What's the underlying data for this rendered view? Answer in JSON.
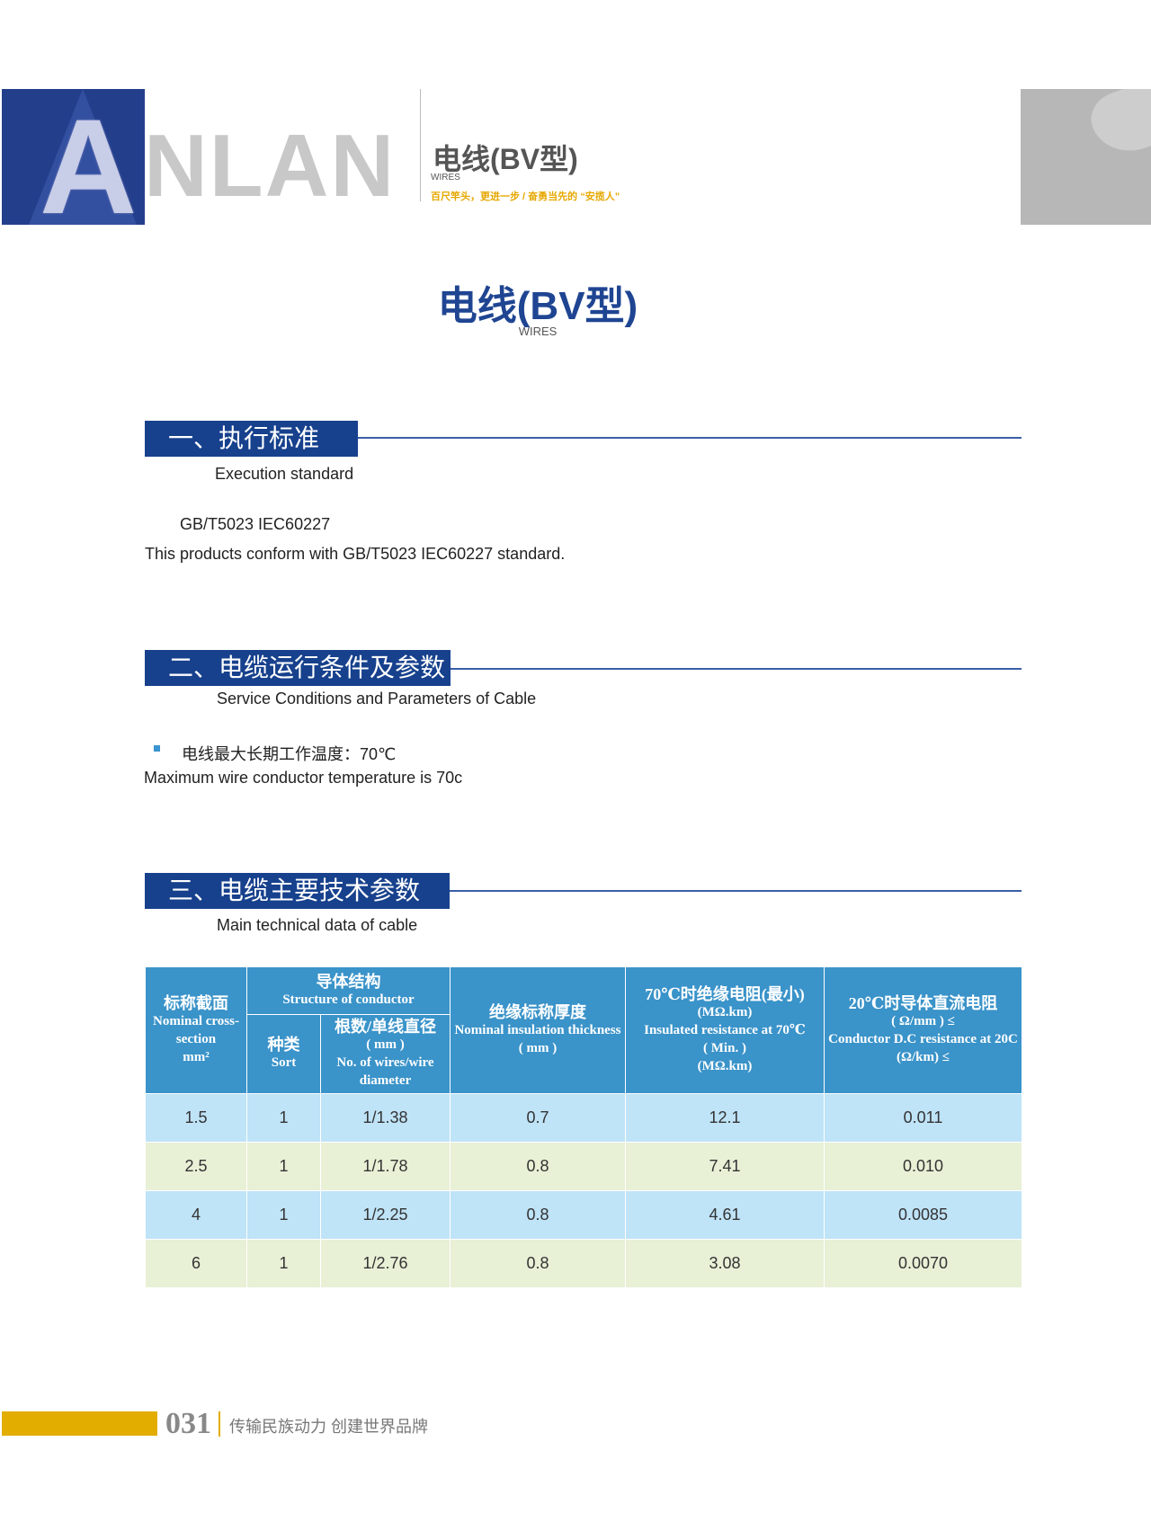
{
  "header": {
    "logo_text": "ANLAN",
    "logo_first_letter": "A",
    "logo_rest": "NLAN",
    "title": "电线(BV型)",
    "subtitle": "WIRES",
    "slogan": "百尺竿头，更进一步 / 奋勇当先的 “安揽人”",
    "colors": {
      "brand_blue": "#17418d",
      "accent_yellow": "#e3ad00",
      "table_header": "#3a93c9"
    }
  },
  "main": {
    "title": "电线(BV型)",
    "subtitle": "WIRES"
  },
  "sections": [
    {
      "title": "一、执行标准",
      "subtitle": "Execution standard",
      "lines": [
        "GB/T5023  IEC60227",
        "This products conform with GB/T5023  IEC60227 standard."
      ]
    },
    {
      "title": "二、电缆运行条件及参数",
      "subtitle": "Service Conditions and Parameters of Cable",
      "bullet": "电线最大长期工作温度：70℃",
      "lines": [
        "Maximum wire conductor temperature is 70c"
      ]
    },
    {
      "title": "三、电缆主要技术参数",
      "subtitle": "Main technical data of cable"
    }
  ],
  "table": {
    "headers": {
      "section": {
        "cn": "标称截面",
        "en": "Nominal cross-section",
        "unit": "mm²"
      },
      "structure": {
        "cn": "导体结构",
        "en": "Structure of conductor"
      },
      "sort": {
        "cn": "种类",
        "en": "Sort"
      },
      "wires": {
        "cn": "根数/单线直径",
        "unit": "( mm )",
        "en": "No. of wires/wire diameter"
      },
      "insulation": {
        "cn": "绝缘标称厚度",
        "en": "Nominal insulation thickness",
        "unit": "( mm )"
      },
      "resistance70": {
        "cn": "70℃时绝缘电阻(最小)",
        "unit": "(MΩ.km)",
        "en": "Insulated resistance at 70℃",
        "min": "( Min. )",
        "unit2": "(MΩ.km)"
      },
      "resistance20": {
        "cn": "20℃时导体直流电阻",
        "unit": "( Ω/mm ) ≤",
        "en": "Conductor D.C resistance at 20C",
        "unit2": "(Ω/km) ≤"
      }
    },
    "rows": [
      [
        "1.5",
        "1",
        "1/1.38",
        "0.7",
        "12.1",
        "0.011"
      ],
      [
        "2.5",
        "1",
        "1/1.78",
        "0.8",
        "7.41",
        "0.010"
      ],
      [
        "4",
        "1",
        "1/2.25",
        "0.8",
        "4.61",
        "0.0085"
      ],
      [
        "6",
        "1",
        "1/2.76",
        "0.8",
        "3.08",
        "0.0070"
      ]
    ]
  },
  "footer": {
    "page_number": "031",
    "slogan": "传输民族动力  创建世界品牌"
  }
}
